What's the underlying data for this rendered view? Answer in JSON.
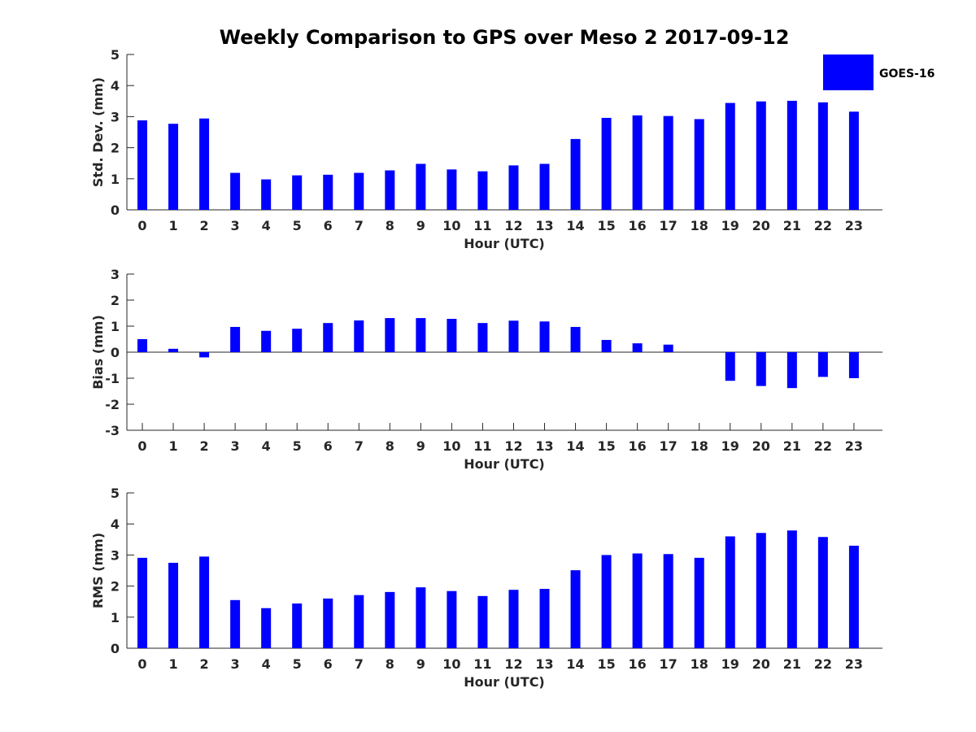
{
  "colors": {
    "bar": "#0000ff",
    "axis": "#262626",
    "background": "#ffffff"
  },
  "legend": {
    "label": "GOES-16",
    "placement": "top-right"
  },
  "chart_data": [
    {
      "type": "bar",
      "title": "Weekly Comparison to GPS over Meso 2 2017-09-12",
      "series_name": "GOES-16",
      "xlabel": "Hour (UTC)",
      "ylabel": "Std. Dev. (mm)",
      "categories": [
        "0",
        "1",
        "2",
        "3",
        "4",
        "5",
        "6",
        "7",
        "8",
        "9",
        "10",
        "11",
        "12",
        "13",
        "14",
        "15",
        "16",
        "17",
        "18",
        "19",
        "20",
        "21",
        "22",
        "23"
      ],
      "values": [
        2.88,
        2.77,
        2.94,
        1.19,
        0.98,
        1.11,
        1.13,
        1.19,
        1.27,
        1.48,
        1.3,
        1.24,
        1.43,
        1.48,
        2.28,
        2.96,
        3.04,
        3.02,
        2.92,
        3.44,
        3.49,
        3.51,
        3.46,
        3.16
      ],
      "ylim": [
        0,
        5
      ],
      "yticks": [
        0,
        1,
        2,
        3,
        4,
        5
      ]
    },
    {
      "type": "bar",
      "title": "",
      "series_name": "GOES-16",
      "xlabel": "Hour (UTC)",
      "ylabel": "Bias (mm)",
      "categories": [
        "0",
        "1",
        "2",
        "3",
        "4",
        "5",
        "6",
        "7",
        "8",
        "9",
        "10",
        "11",
        "12",
        "13",
        "14",
        "15",
        "16",
        "17",
        "18",
        "19",
        "20",
        "21",
        "22",
        "23"
      ],
      "values": [
        0.5,
        0.13,
        -0.2,
        0.97,
        0.82,
        0.9,
        1.12,
        1.22,
        1.31,
        1.31,
        1.28,
        1.12,
        1.21,
        1.18,
        0.97,
        0.47,
        0.34,
        0.29,
        0.0,
        -1.1,
        -1.3,
        -1.38,
        -0.95,
        -1.0
      ],
      "ylim": [
        -3,
        3
      ],
      "yticks": [
        -3,
        -2,
        -1,
        0,
        1,
        2,
        3
      ]
    },
    {
      "type": "bar",
      "title": "",
      "series_name": "GOES-16",
      "xlabel": "Hour (UTC)",
      "ylabel": "RMS (mm)",
      "categories": [
        "0",
        "1",
        "2",
        "3",
        "4",
        "5",
        "6",
        "7",
        "8",
        "9",
        "10",
        "11",
        "12",
        "13",
        "14",
        "15",
        "16",
        "17",
        "18",
        "19",
        "20",
        "21",
        "22",
        "23"
      ],
      "values": [
        2.91,
        2.75,
        2.95,
        1.55,
        1.29,
        1.44,
        1.6,
        1.71,
        1.81,
        1.96,
        1.84,
        1.68,
        1.88,
        1.91,
        2.51,
        3.0,
        3.05,
        3.03,
        2.91,
        3.6,
        3.71,
        3.79,
        3.58,
        3.3
      ],
      "ylim": [
        0,
        5
      ],
      "yticks": [
        0,
        1,
        2,
        3,
        4,
        5
      ]
    }
  ]
}
